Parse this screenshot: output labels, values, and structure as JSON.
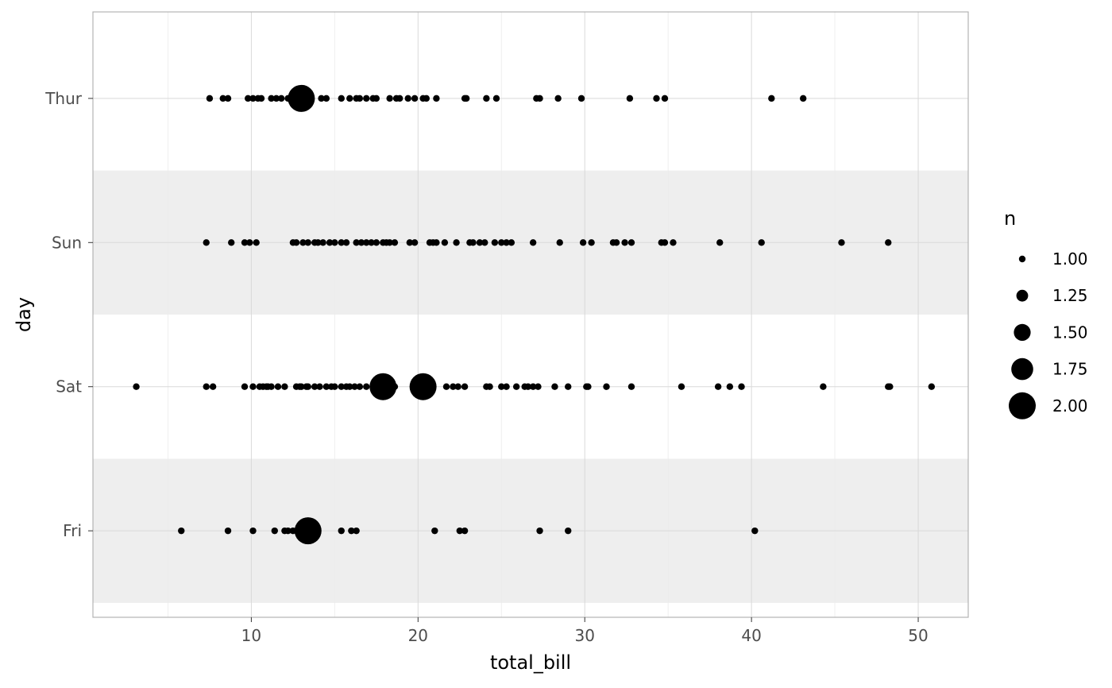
{
  "chart_data": {
    "type": "scatter",
    "xlabel": "total_bill",
    "ylabel": "day",
    "x_ticks": [
      10,
      20,
      30,
      40,
      50
    ],
    "xlim": [
      0.5,
      53
    ],
    "categories": [
      "Fri",
      "Sat",
      "Sun",
      "Thur"
    ],
    "grid": true,
    "banded_rows": [
      "Fri",
      "Sun"
    ],
    "legend": {
      "title": "n",
      "placement": "right",
      "entries": [
        {
          "label": "1.00",
          "value": 1.0
        },
        {
          "label": "1.25",
          "value": 1.25
        },
        {
          "label": "1.50",
          "value": 1.5
        },
        {
          "label": "1.75",
          "value": 1.75
        },
        {
          "label": "2.00",
          "value": 2.0
        }
      ]
    },
    "size_range": [
      1,
      2
    ],
    "points": [
      {
        "day": "Thur",
        "x": 7.5,
        "n": 1
      },
      {
        "day": "Thur",
        "x": 8.3,
        "n": 1
      },
      {
        "day": "Thur",
        "x": 8.6,
        "n": 1
      },
      {
        "day": "Thur",
        "x": 9.8,
        "n": 1
      },
      {
        "day": "Thur",
        "x": 10.1,
        "n": 1
      },
      {
        "day": "Thur",
        "x": 10.4,
        "n": 1
      },
      {
        "day": "Thur",
        "x": 10.6,
        "n": 1
      },
      {
        "day": "Thur",
        "x": 11.2,
        "n": 1
      },
      {
        "day": "Thur",
        "x": 11.5,
        "n": 1
      },
      {
        "day": "Thur",
        "x": 11.8,
        "n": 1
      },
      {
        "day": "Thur",
        "x": 12.2,
        "n": 1
      },
      {
        "day": "Thur",
        "x": 12.5,
        "n": 1
      },
      {
        "day": "Thur",
        "x": 13.0,
        "n": 2
      },
      {
        "day": "Thur",
        "x": 14.2,
        "n": 1
      },
      {
        "day": "Thur",
        "x": 14.5,
        "n": 1
      },
      {
        "day": "Thur",
        "x": 15.4,
        "n": 1
      },
      {
        "day": "Thur",
        "x": 15.9,
        "n": 1
      },
      {
        "day": "Thur",
        "x": 16.3,
        "n": 1
      },
      {
        "day": "Thur",
        "x": 16.5,
        "n": 1
      },
      {
        "day": "Thur",
        "x": 16.9,
        "n": 1
      },
      {
        "day": "Thur",
        "x": 17.3,
        "n": 1
      },
      {
        "day": "Thur",
        "x": 17.5,
        "n": 1
      },
      {
        "day": "Thur",
        "x": 18.3,
        "n": 1
      },
      {
        "day": "Thur",
        "x": 18.7,
        "n": 1
      },
      {
        "day": "Thur",
        "x": 18.9,
        "n": 1
      },
      {
        "day": "Thur",
        "x": 19.4,
        "n": 1
      },
      {
        "day": "Thur",
        "x": 19.8,
        "n": 1
      },
      {
        "day": "Thur",
        "x": 20.3,
        "n": 1
      },
      {
        "day": "Thur",
        "x": 20.5,
        "n": 1
      },
      {
        "day": "Thur",
        "x": 21.1,
        "n": 1
      },
      {
        "day": "Thur",
        "x": 22.8,
        "n": 1
      },
      {
        "day": "Thur",
        "x": 22.9,
        "n": 1
      },
      {
        "day": "Thur",
        "x": 24.1,
        "n": 1
      },
      {
        "day": "Thur",
        "x": 24.7,
        "n": 1
      },
      {
        "day": "Thur",
        "x": 27.1,
        "n": 1
      },
      {
        "day": "Thur",
        "x": 27.3,
        "n": 1
      },
      {
        "day": "Thur",
        "x": 28.4,
        "n": 1
      },
      {
        "day": "Thur",
        "x": 29.8,
        "n": 1
      },
      {
        "day": "Thur",
        "x": 32.7,
        "n": 1
      },
      {
        "day": "Thur",
        "x": 34.3,
        "n": 1
      },
      {
        "day": "Thur",
        "x": 34.8,
        "n": 1
      },
      {
        "day": "Thur",
        "x": 41.2,
        "n": 1
      },
      {
        "day": "Thur",
        "x": 43.1,
        "n": 1
      },
      {
        "day": "Sun",
        "x": 7.3,
        "n": 1
      },
      {
        "day": "Sun",
        "x": 8.8,
        "n": 1
      },
      {
        "day": "Sun",
        "x": 9.6,
        "n": 1
      },
      {
        "day": "Sun",
        "x": 9.9,
        "n": 1
      },
      {
        "day": "Sun",
        "x": 10.3,
        "n": 1
      },
      {
        "day": "Sun",
        "x": 12.5,
        "n": 1
      },
      {
        "day": "Sun",
        "x": 12.7,
        "n": 1
      },
      {
        "day": "Sun",
        "x": 13.1,
        "n": 1
      },
      {
        "day": "Sun",
        "x": 13.4,
        "n": 1
      },
      {
        "day": "Sun",
        "x": 13.8,
        "n": 1
      },
      {
        "day": "Sun",
        "x": 14.0,
        "n": 1
      },
      {
        "day": "Sun",
        "x": 14.3,
        "n": 1
      },
      {
        "day": "Sun",
        "x": 14.7,
        "n": 1
      },
      {
        "day": "Sun",
        "x": 15.0,
        "n": 1
      },
      {
        "day": "Sun",
        "x": 15.4,
        "n": 1
      },
      {
        "day": "Sun",
        "x": 15.7,
        "n": 1
      },
      {
        "day": "Sun",
        "x": 16.3,
        "n": 1
      },
      {
        "day": "Sun",
        "x": 16.6,
        "n": 1
      },
      {
        "day": "Sun",
        "x": 16.9,
        "n": 1
      },
      {
        "day": "Sun",
        "x": 17.2,
        "n": 1
      },
      {
        "day": "Sun",
        "x": 17.5,
        "n": 1
      },
      {
        "day": "Sun",
        "x": 17.9,
        "n": 1
      },
      {
        "day": "Sun",
        "x": 18.1,
        "n": 1
      },
      {
        "day": "Sun",
        "x": 18.3,
        "n": 1
      },
      {
        "day": "Sun",
        "x": 18.6,
        "n": 1
      },
      {
        "day": "Sun",
        "x": 19.5,
        "n": 1
      },
      {
        "day": "Sun",
        "x": 19.8,
        "n": 1
      },
      {
        "day": "Sun",
        "x": 20.7,
        "n": 1
      },
      {
        "day": "Sun",
        "x": 20.9,
        "n": 1
      },
      {
        "day": "Sun",
        "x": 21.1,
        "n": 1
      },
      {
        "day": "Sun",
        "x": 21.6,
        "n": 1
      },
      {
        "day": "Sun",
        "x": 22.3,
        "n": 1
      },
      {
        "day": "Sun",
        "x": 23.1,
        "n": 1
      },
      {
        "day": "Sun",
        "x": 23.3,
        "n": 1
      },
      {
        "day": "Sun",
        "x": 23.7,
        "n": 1
      },
      {
        "day": "Sun",
        "x": 24.0,
        "n": 1
      },
      {
        "day": "Sun",
        "x": 24.6,
        "n": 1
      },
      {
        "day": "Sun",
        "x": 25.0,
        "n": 1
      },
      {
        "day": "Sun",
        "x": 25.3,
        "n": 1
      },
      {
        "day": "Sun",
        "x": 25.6,
        "n": 1
      },
      {
        "day": "Sun",
        "x": 26.9,
        "n": 1
      },
      {
        "day": "Sun",
        "x": 28.5,
        "n": 1
      },
      {
        "day": "Sun",
        "x": 29.9,
        "n": 1
      },
      {
        "day": "Sun",
        "x": 30.4,
        "n": 1
      },
      {
        "day": "Sun",
        "x": 31.7,
        "n": 1
      },
      {
        "day": "Sun",
        "x": 31.9,
        "n": 1
      },
      {
        "day": "Sun",
        "x": 32.4,
        "n": 1
      },
      {
        "day": "Sun",
        "x": 32.8,
        "n": 1
      },
      {
        "day": "Sun",
        "x": 34.6,
        "n": 1
      },
      {
        "day": "Sun",
        "x": 34.8,
        "n": 1
      },
      {
        "day": "Sun",
        "x": 35.3,
        "n": 1
      },
      {
        "day": "Sun",
        "x": 38.1,
        "n": 1
      },
      {
        "day": "Sun",
        "x": 40.6,
        "n": 1
      },
      {
        "day": "Sun",
        "x": 45.4,
        "n": 1
      },
      {
        "day": "Sun",
        "x": 48.2,
        "n": 1
      },
      {
        "day": "Sat",
        "x": 3.1,
        "n": 1
      },
      {
        "day": "Sat",
        "x": 7.3,
        "n": 1
      },
      {
        "day": "Sat",
        "x": 7.7,
        "n": 1
      },
      {
        "day": "Sat",
        "x": 9.6,
        "n": 1
      },
      {
        "day": "Sat",
        "x": 10.1,
        "n": 1
      },
      {
        "day": "Sat",
        "x": 10.5,
        "n": 1
      },
      {
        "day": "Sat",
        "x": 10.7,
        "n": 1
      },
      {
        "day": "Sat",
        "x": 10.9,
        "n": 1
      },
      {
        "day": "Sat",
        "x": 11.0,
        "n": 1
      },
      {
        "day": "Sat",
        "x": 11.2,
        "n": 1
      },
      {
        "day": "Sat",
        "x": 11.6,
        "n": 1
      },
      {
        "day": "Sat",
        "x": 12.0,
        "n": 1
      },
      {
        "day": "Sat",
        "x": 12.7,
        "n": 1
      },
      {
        "day": "Sat",
        "x": 12.9,
        "n": 1
      },
      {
        "day": "Sat",
        "x": 13.0,
        "n": 1
      },
      {
        "day": "Sat",
        "x": 13.3,
        "n": 1
      },
      {
        "day": "Sat",
        "x": 13.4,
        "n": 1
      },
      {
        "day": "Sat",
        "x": 13.8,
        "n": 1
      },
      {
        "day": "Sat",
        "x": 14.1,
        "n": 1
      },
      {
        "day": "Sat",
        "x": 14.5,
        "n": 1
      },
      {
        "day": "Sat",
        "x": 14.8,
        "n": 1
      },
      {
        "day": "Sat",
        "x": 15.0,
        "n": 1
      },
      {
        "day": "Sat",
        "x": 15.4,
        "n": 1
      },
      {
        "day": "Sat",
        "x": 15.7,
        "n": 1
      },
      {
        "day": "Sat",
        "x": 15.9,
        "n": 1
      },
      {
        "day": "Sat",
        "x": 16.2,
        "n": 1
      },
      {
        "day": "Sat",
        "x": 16.5,
        "n": 1
      },
      {
        "day": "Sat",
        "x": 16.9,
        "n": 1
      },
      {
        "day": "Sat",
        "x": 17.9,
        "n": 2
      },
      {
        "day": "Sat",
        "x": 18.6,
        "n": 1
      },
      {
        "day": "Sat",
        "x": 20.3,
        "n": 2
      },
      {
        "day": "Sat",
        "x": 21.7,
        "n": 1
      },
      {
        "day": "Sat",
        "x": 22.1,
        "n": 1
      },
      {
        "day": "Sat",
        "x": 22.4,
        "n": 1
      },
      {
        "day": "Sat",
        "x": 22.8,
        "n": 1
      },
      {
        "day": "Sat",
        "x": 24.1,
        "n": 1
      },
      {
        "day": "Sat",
        "x": 24.3,
        "n": 1
      },
      {
        "day": "Sat",
        "x": 25.0,
        "n": 1
      },
      {
        "day": "Sat",
        "x": 25.3,
        "n": 1
      },
      {
        "day": "Sat",
        "x": 25.9,
        "n": 1
      },
      {
        "day": "Sat",
        "x": 26.4,
        "n": 1
      },
      {
        "day": "Sat",
        "x": 26.6,
        "n": 1
      },
      {
        "day": "Sat",
        "x": 26.9,
        "n": 1
      },
      {
        "day": "Sat",
        "x": 27.2,
        "n": 1
      },
      {
        "day": "Sat",
        "x": 28.2,
        "n": 1
      },
      {
        "day": "Sat",
        "x": 29.0,
        "n": 1
      },
      {
        "day": "Sat",
        "x": 30.1,
        "n": 1
      },
      {
        "day": "Sat",
        "x": 30.2,
        "n": 1
      },
      {
        "day": "Sat",
        "x": 31.3,
        "n": 1
      },
      {
        "day": "Sat",
        "x": 32.8,
        "n": 1
      },
      {
        "day": "Sat",
        "x": 35.8,
        "n": 1
      },
      {
        "day": "Sat",
        "x": 38.0,
        "n": 1
      },
      {
        "day": "Sat",
        "x": 38.7,
        "n": 1
      },
      {
        "day": "Sat",
        "x": 39.4,
        "n": 1
      },
      {
        "day": "Sat",
        "x": 44.3,
        "n": 1
      },
      {
        "day": "Sat",
        "x": 48.2,
        "n": 1
      },
      {
        "day": "Sat",
        "x": 48.3,
        "n": 1
      },
      {
        "day": "Sat",
        "x": 50.8,
        "n": 1
      },
      {
        "day": "Fri",
        "x": 5.8,
        "n": 1
      },
      {
        "day": "Fri",
        "x": 8.6,
        "n": 1
      },
      {
        "day": "Fri",
        "x": 10.1,
        "n": 1
      },
      {
        "day": "Fri",
        "x": 11.4,
        "n": 1
      },
      {
        "day": "Fri",
        "x": 12.0,
        "n": 1
      },
      {
        "day": "Fri",
        "x": 12.2,
        "n": 1
      },
      {
        "day": "Fri",
        "x": 12.5,
        "n": 1
      },
      {
        "day": "Fri",
        "x": 13.4,
        "n": 2
      },
      {
        "day": "Fri",
        "x": 15.4,
        "n": 1
      },
      {
        "day": "Fri",
        "x": 16.0,
        "n": 1
      },
      {
        "day": "Fri",
        "x": 16.3,
        "n": 1
      },
      {
        "day": "Fri",
        "x": 21.0,
        "n": 1
      },
      {
        "day": "Fri",
        "x": 22.5,
        "n": 1
      },
      {
        "day": "Fri",
        "x": 22.8,
        "n": 1
      },
      {
        "day": "Fri",
        "x": 27.3,
        "n": 1
      },
      {
        "day": "Fri",
        "x": 29.0,
        "n": 1
      },
      {
        "day": "Fri",
        "x": 40.2,
        "n": 1
      }
    ],
    "colors": {
      "point": "#000000",
      "band": "#eeeeee",
      "grid": "#d9d9d9",
      "border": "#b3b3b3",
      "tick_text": "#4d4d4d"
    }
  }
}
